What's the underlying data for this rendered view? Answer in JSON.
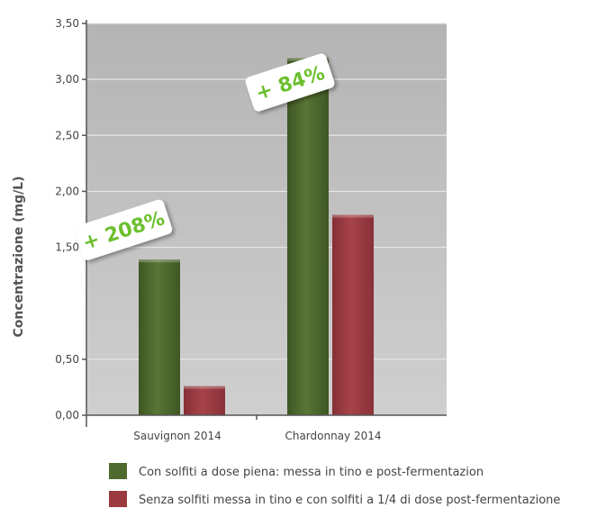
{
  "chart_data": {
    "type": "bar",
    "title": "",
    "xlabel": "",
    "ylabel": "Concentrazione (mg/L)",
    "ylim": [
      0,
      3.5
    ],
    "y_ticks": [
      "0,00",
      "0,50",
      "1,50",
      "2,00",
      "2,50",
      "3,00",
      "3,50"
    ],
    "y_tick_values": [
      0,
      0.5,
      1.5,
      2.0,
      2.5,
      3.0,
      3.5
    ],
    "grid": true,
    "categories": [
      "Sauvignon 2014",
      "Chardonnay 2014"
    ],
    "series": [
      {
        "name": "Con solfiti a dose piena: messa in tino e post-fermentazion",
        "color": "#4f6a2e",
        "values": [
          1.39,
          3.19
        ]
      },
      {
        "name": "Senza solfiti messa in tino e con solfiti a 1/4 di dose post-fermentazione",
        "color": "#9b3a3f",
        "values": [
          0.26,
          1.79
        ]
      }
    ],
    "annotations": [
      {
        "text": "+ 208%",
        "category": "Sauvignon 2014"
      },
      {
        "text": "+ 84%",
        "category": "Chardonnay 2014"
      }
    ],
    "legend_position": "bottom"
  },
  "colors": {
    "plot_background": "#bfbfbf",
    "grid": "#e6e6e6",
    "badge_text": "#6cbf2e"
  }
}
